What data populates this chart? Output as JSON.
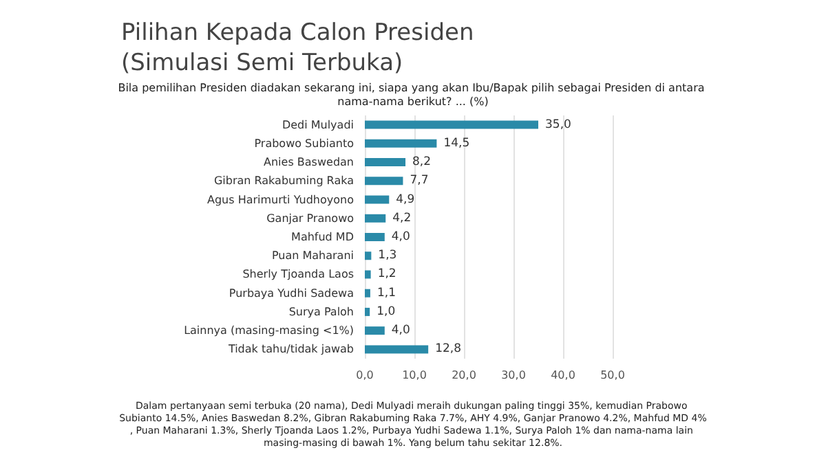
{
  "chart_data": {
    "type": "bar",
    "orientation": "horizontal",
    "title": "Pilihan Kepada Calon Presiden\n(Simulasi Semi Terbuka)",
    "subtitle": "Bila pemilihan Presiden diadakan sekarang ini, siapa yang akan Ibu/Bapak pilih sebagai Presiden di antara nama-nama berikut? ... (%)",
    "categories": [
      "Dedi Mulyadi",
      "Prabowo Subianto",
      "Anies Baswedan",
      "Gibran Rakabuming Raka",
      "Agus Harimurti Yudhoyono",
      "Ganjar Pranowo",
      "Mahfud MD",
      "Puan Maharani",
      "Sherly Tjoanda Laos",
      "Purbaya Yudhi Sadewa",
      "Surya Paloh",
      "Lainnya (masing-masing <1%)",
      "Tidak tahu/tidak jawab"
    ],
    "values": [
      35.0,
      14.5,
      8.2,
      7.7,
      4.9,
      4.2,
      4.0,
      1.3,
      1.2,
      1.1,
      1.0,
      4.0,
      12.8
    ],
    "value_labels": [
      "35,0",
      "14,5",
      "8,2",
      "7,7",
      "4,9",
      "4,2",
      "4,0",
      "1,3",
      "1,2",
      "1,1",
      "1,0",
      "4,0",
      "12,8"
    ],
    "color": "#2a8aa8",
    "xlim": [
      0,
      50
    ],
    "xticks": [
      {
        "value": 0,
        "label": "0,0"
      },
      {
        "value": 10,
        "label": "10,0"
      },
      {
        "value": 20,
        "label": "20,0"
      },
      {
        "value": 30,
        "label": "30,0"
      },
      {
        "value": 40,
        "label": "40,0"
      },
      {
        "value": 50,
        "label": "50,0"
      }
    ],
    "grid": "x",
    "annotations": [
      "Dalam pertanyaan semi terbuka (20 nama), Dedi Mulyadi meraih dukungan paling tinggi 35%, kemudian Prabowo Subianto 14.5%, Anies Baswedan 8.2%, Gibran Rakabuming Raka 7.7%, AHY 4.9%, Ganjar Pranowo 4.2%, Mahfud MD 4%, Puan Maharani 1.3%, Sherly Tjoanda Laos 1.2%, Purbaya Yudhi Sadewa 1.1%, Surya Paloh 1% dan nama-nama lain masing-masing di bawah 1%. Yang belum tahu sekitar 12.8%."
    ]
  }
}
